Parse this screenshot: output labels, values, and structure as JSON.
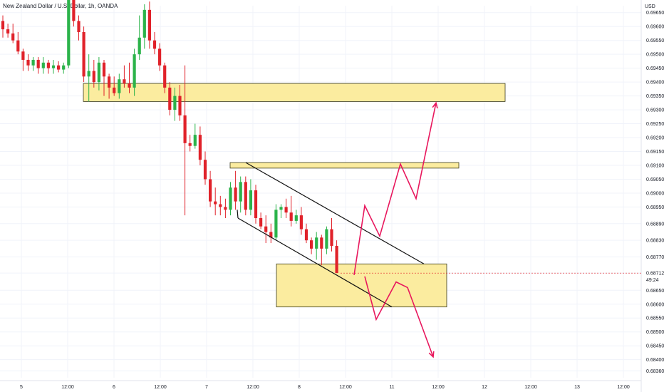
{
  "header": {
    "title": "New Zealand Dollar / U.S. Dollar, 1h, OANDA",
    "currency": "USD"
  },
  "colors": {
    "up": "#26a69a",
    "upBody": "#2bb34a",
    "down": "#e0222a",
    "zoneFill": "#fbec9f",
    "zoneStroke": "#3a3a1a",
    "channel": "#111111",
    "arrow": "#e8175d",
    "grid": "#f0f3fa"
  },
  "current_price": {
    "value": "0.68712",
    "countdown": "49:24"
  },
  "chart_data": {
    "type": "candlestick",
    "title": "New Zealand Dollar / U.S. Dollar, 1h, OANDA",
    "ylabel": "USD",
    "ylim": [
      0.68335,
      0.69675
    ],
    "y_ticks": [
      "0.69650",
      "0.69600",
      "0.69550",
      "0.69500",
      "0.69450",
      "0.69400",
      "0.69350",
      "0.69300",
      "0.69250",
      "0.69200",
      "0.69150",
      "0.69100",
      "0.69050",
      "0.69000",
      "0.68950",
      "0.68890",
      "0.68830",
      "0.68770",
      "0.68712",
      "0.68650",
      "0.68600",
      "0.68550",
      "0.68500",
      "0.68450",
      "0.68400",
      "0.68360"
    ],
    "x_ticks": [
      "5",
      "12:00",
      "6",
      "12:00",
      "7",
      "12:00",
      "8",
      "12:00",
      "11",
      "12:00",
      "12",
      "12:00",
      "13",
      "12:00"
    ],
    "candles": [
      {
        "o": 0.6962,
        "h": 0.6964,
        "l": 0.6956,
        "c": 0.6959
      },
      {
        "o": 0.6959,
        "h": 0.6961,
        "l": 0.6956,
        "c": 0.69575
      },
      {
        "o": 0.69575,
        "h": 0.6961,
        "l": 0.6954,
        "c": 0.6955
      },
      {
        "o": 0.6955,
        "h": 0.6958,
        "l": 0.695,
        "c": 0.6951
      },
      {
        "o": 0.6951,
        "h": 0.6952,
        "l": 0.6944,
        "c": 0.6948
      },
      {
        "o": 0.6948,
        "h": 0.695,
        "l": 0.6944,
        "c": 0.6946
      },
      {
        "o": 0.6946,
        "h": 0.6949,
        "l": 0.6944,
        "c": 0.6948
      },
      {
        "o": 0.6948,
        "h": 0.6949,
        "l": 0.6943,
        "c": 0.6945
      },
      {
        "o": 0.6945,
        "h": 0.6949,
        "l": 0.6943,
        "c": 0.6947
      },
      {
        "o": 0.6947,
        "h": 0.6948,
        "l": 0.6943,
        "c": 0.6945
      },
      {
        "o": 0.6945,
        "h": 0.6948,
        "l": 0.6943,
        "c": 0.6946
      },
      {
        "o": 0.6946,
        "h": 0.69475,
        "l": 0.69435,
        "c": 0.69445
      },
      {
        "o": 0.69445,
        "h": 0.6947,
        "l": 0.6943,
        "c": 0.6946
      },
      {
        "o": 0.6946,
        "h": 0.6978,
        "l": 0.6945,
        "c": 0.6975
      },
      {
        "o": 0.697,
        "h": 0.6972,
        "l": 0.696,
        "c": 0.6962
      },
      {
        "o": 0.6962,
        "h": 0.6964,
        "l": 0.6955,
        "c": 0.6958
      },
      {
        "o": 0.6958,
        "h": 0.696,
        "l": 0.694,
        "c": 0.6942
      },
      {
        "o": 0.6942,
        "h": 0.695,
        "l": 0.6933,
        "c": 0.6944
      },
      {
        "o": 0.6944,
        "h": 0.6948,
        "l": 0.6938,
        "c": 0.694
      },
      {
        "o": 0.694,
        "h": 0.6949,
        "l": 0.6937,
        "c": 0.6947
      },
      {
        "o": 0.6947,
        "h": 0.6948,
        "l": 0.6935,
        "c": 0.6942
      },
      {
        "o": 0.6942,
        "h": 0.6943,
        "l": 0.6934,
        "c": 0.6938
      },
      {
        "o": 0.6938,
        "h": 0.6942,
        "l": 0.6935,
        "c": 0.6936
      },
      {
        "o": 0.6936,
        "h": 0.6943,
        "l": 0.6934,
        "c": 0.6941
      },
      {
        "o": 0.6941,
        "h": 0.6946,
        "l": 0.6938,
        "c": 0.69395
      },
      {
        "o": 0.69395,
        "h": 0.6947,
        "l": 0.6936,
        "c": 0.6938
      },
      {
        "o": 0.6938,
        "h": 0.6952,
        "l": 0.6935,
        "c": 0.695
      },
      {
        "o": 0.695,
        "h": 0.6964,
        "l": 0.6948,
        "c": 0.6956
      },
      {
        "o": 0.6956,
        "h": 0.6968,
        "l": 0.6952,
        "c": 0.6966
      },
      {
        "o": 0.6966,
        "h": 0.6969,
        "l": 0.6952,
        "c": 0.6955
      },
      {
        "o": 0.6955,
        "h": 0.6958,
        "l": 0.695,
        "c": 0.6952
      },
      {
        "o": 0.6952,
        "h": 0.6954,
        "l": 0.6944,
        "c": 0.6946
      },
      {
        "o": 0.6946,
        "h": 0.6947,
        "l": 0.6936,
        "c": 0.6938
      },
      {
        "o": 0.6938,
        "h": 0.694,
        "l": 0.6928,
        "c": 0.693
      },
      {
        "o": 0.693,
        "h": 0.6938,
        "l": 0.6926,
        "c": 0.6935
      },
      {
        "o": 0.6935,
        "h": 0.6939,
        "l": 0.6926,
        "c": 0.6928
      },
      {
        "o": 0.6928,
        "h": 0.6946,
        "l": 0.6892,
        "c": 0.6918
      },
      {
        "o": 0.6918,
        "h": 0.6921,
        "l": 0.6915,
        "c": 0.6917
      },
      {
        "o": 0.6917,
        "h": 0.6925,
        "l": 0.6916,
        "c": 0.6921
      },
      {
        "o": 0.6921,
        "h": 0.6924,
        "l": 0.691,
        "c": 0.6912
      },
      {
        "o": 0.6912,
        "h": 0.6915,
        "l": 0.6903,
        "c": 0.6905
      },
      {
        "o": 0.6905,
        "h": 0.6908,
        "l": 0.6895,
        "c": 0.6897
      },
      {
        "o": 0.6897,
        "h": 0.6902,
        "l": 0.6892,
        "c": 0.6896
      },
      {
        "o": 0.6896,
        "h": 0.6899,
        "l": 0.6892,
        "c": 0.6895
      },
      {
        "o": 0.6895,
        "h": 0.6898,
        "l": 0.6891,
        "c": 0.6894
      },
      {
        "o": 0.6894,
        "h": 0.6904,
        "l": 0.6892,
        "c": 0.6902
      },
      {
        "o": 0.6902,
        "h": 0.6908,
        "l": 0.6894,
        "c": 0.6897
      },
      {
        "o": 0.6897,
        "h": 0.6906,
        "l": 0.6893,
        "c": 0.6904
      },
      {
        "o": 0.6904,
        "h": 0.6906,
        "l": 0.6892,
        "c": 0.6894
      },
      {
        "o": 0.6894,
        "h": 0.6905,
        "l": 0.6892,
        "c": 0.6901
      },
      {
        "o": 0.6901,
        "h": 0.6903,
        "l": 0.6889,
        "c": 0.6891
      },
      {
        "o": 0.6891,
        "h": 0.6893,
        "l": 0.6887,
        "c": 0.6888
      },
      {
        "o": 0.6888,
        "h": 0.6892,
        "l": 0.6882,
        "c": 0.6886
      },
      {
        "o": 0.6886,
        "h": 0.6889,
        "l": 0.6882,
        "c": 0.6884
      },
      {
        "o": 0.6884,
        "h": 0.6896,
        "l": 0.6883,
        "c": 0.6894
      },
      {
        "o": 0.6894,
        "h": 0.6896,
        "l": 0.6891,
        "c": 0.6895
      },
      {
        "o": 0.6895,
        "h": 0.6898,
        "l": 0.6891,
        "c": 0.6893
      },
      {
        "o": 0.6893,
        "h": 0.6899,
        "l": 0.6888,
        "c": 0.689
      },
      {
        "o": 0.689,
        "h": 0.6894,
        "l": 0.6889,
        "c": 0.6892
      },
      {
        "o": 0.6892,
        "h": 0.6895,
        "l": 0.6885,
        "c": 0.6887
      },
      {
        "o": 0.6887,
        "h": 0.6889,
        "l": 0.6882,
        "c": 0.6883
      },
      {
        "o": 0.6883,
        "h": 0.6884,
        "l": 0.6878,
        "c": 0.688
      },
      {
        "o": 0.688,
        "h": 0.6886,
        "l": 0.6876,
        "c": 0.6884
      },
      {
        "o": 0.6884,
        "h": 0.6885,
        "l": 0.6874,
        "c": 0.688
      },
      {
        "o": 0.688,
        "h": 0.6888,
        "l": 0.6878,
        "c": 0.6887
      },
      {
        "o": 0.6887,
        "h": 0.6891,
        "l": 0.6879,
        "c": 0.6881
      },
      {
        "o": 0.6881,
        "h": 0.6883,
        "l": 0.6872,
        "c": 0.68712
      }
    ],
    "zones": [
      {
        "from": 0.6933,
        "to": 0.69395
      },
      {
        "from": 0.6909,
        "to": 0.6911
      },
      {
        "from": 0.6859,
        "to": 0.68745
      }
    ]
  }
}
